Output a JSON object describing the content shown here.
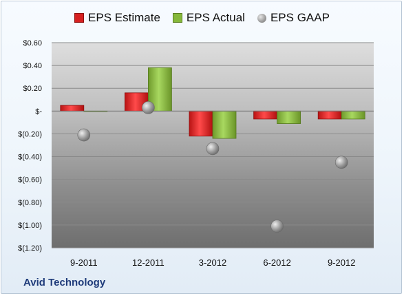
{
  "company": "Avid Technology",
  "chart_data": {
    "type": "bar",
    "categories": [
      "9-2011",
      "12-2011",
      "3-2012",
      "6-2012",
      "9-2012"
    ],
    "y_tick_labels": [
      "$0.60",
      "$0.40",
      "$0.20",
      "$-",
      "$(0.20)",
      "$(0.40)",
      "$(0.60)",
      "$(0.80)",
      "$(1.00)",
      "$(1.20)"
    ],
    "ylim": [
      -1.2,
      0.6
    ],
    "y_ticks": [
      0.6,
      0.4,
      0.2,
      0,
      -0.2,
      -0.4,
      -0.6,
      -0.8,
      -1.0,
      -1.2
    ],
    "grid": true,
    "legend_position": "top",
    "series": [
      {
        "name": "EPS Estimate",
        "kind": "bar",
        "color": "#e02020",
        "values": [
          0.05,
          0.16,
          -0.22,
          -0.07,
          -0.07
        ]
      },
      {
        "name": "EPS Actual",
        "kind": "bar",
        "color": "#8bbd3c",
        "values": [
          0.0,
          0.38,
          -0.24,
          -0.11,
          -0.07
        ]
      },
      {
        "name": "EPS GAAP",
        "kind": "point",
        "color": "#a8a8a8",
        "values": [
          -0.21,
          0.03,
          -0.33,
          -1.01,
          -0.45
        ]
      }
    ]
  }
}
